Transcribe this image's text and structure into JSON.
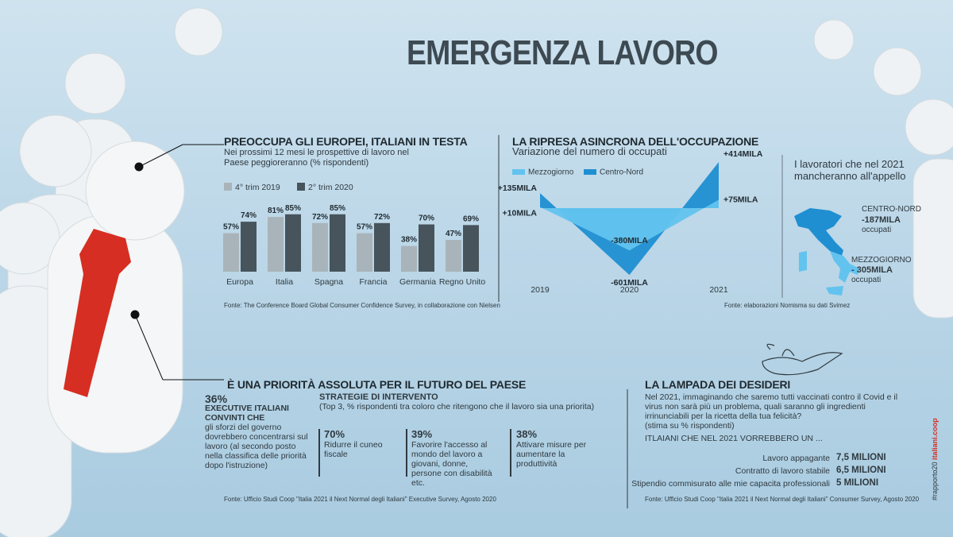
{
  "title": "EMERGENZA LAVORO",
  "chart_data": [
    {
      "type": "bar",
      "title": "PREOCCUPA GLI EUROPEI, ITALIANI IN TESTA",
      "subtitle": "Nei prossimi 12 mesi le prospettive di lavoro nel Paese peggioreranno (% rispondenti)",
      "categories": [
        "Europa",
        "Italia",
        "Spagna",
        "Francia",
        "Germania",
        "Regno Unito"
      ],
      "series": [
        {
          "name": "4° trim 2019",
          "color": "#a9b4ba",
          "values": [
            57,
            81,
            72,
            57,
            38,
            47
          ],
          "value_labels": [
            "57%",
            "81%",
            "72%",
            "57%",
            "38%",
            "47%"
          ]
        },
        {
          "name": "2° trim 2020",
          "color": "#47545c",
          "values": [
            74,
            85,
            85,
            72,
            70,
            69
          ],
          "value_labels": [
            "74%",
            "85%",
            "85%",
            "72%",
            "70%",
            "69%"
          ]
        }
      ],
      "source": "Fonte: The Conference Board Global Consumer Confidence Survey, in collaborazione con Nielsen"
    },
    {
      "type": "area",
      "title": "LA RIPRESA ASINCRONA DELL'OCCUPAZIONE",
      "subtitle": "Variazione del numero di occupati",
      "x": [
        2019,
        2020,
        2021
      ],
      "series": [
        {
          "name": "Mezzogiorno",
          "color": "#62c3ee",
          "values": [
            10,
            -380,
            75
          ],
          "value_labels": [
            "+10MILA",
            "-380MILA",
            "+75MILA"
          ]
        },
        {
          "name": "Centro-Nord",
          "color": "#1f8fd2",
          "values": [
            135,
            -601,
            414
          ],
          "value_labels": [
            "+135MILA",
            "-601MILA",
            "+414MILA"
          ]
        }
      ],
      "source": "Fonte: elaborazioni Nomisma su dati Svimez"
    }
  ],
  "map": {
    "title": "I lavoratori che nel 2021 mancheranno all'appello",
    "regions": [
      {
        "name": "CENTRO-NORD",
        "value": "-187MILA",
        "unit": "occupati"
      },
      {
        "name": "MEZZOGIORNO",
        "value": "- 305MILA",
        "unit": "occupati"
      }
    ]
  },
  "priority": {
    "title": "È UNA PRIORITÀ ASSOLUTA PER IL FUTURO DEL PAESE",
    "share": "36%",
    "who": "EXECUTIVE ITALIANI CONVINTI CHE",
    "text": "gli sforzi del governo dovrebbero concentrarsi sul lavoro (al secondo posto nella classifica delle priorità dopo l'istruzione)",
    "strategies_title": "STRATEGIE  DI INTERVENTO",
    "strategies_subtitle": "(Top 3, % rispondenti tra coloro che ritengono che il lavoro sia una priorita)",
    "strategies": [
      {
        "value": "70%",
        "text": "Ridurre il cuneo fiscale"
      },
      {
        "value": "39%",
        "text": "Favorire l'accesso al mondo del lavoro a giovani, donne, persone con disabilità etc."
      },
      {
        "value": "38%",
        "text": "Attivare misure per aumentare la produttività"
      }
    ],
    "source": "Fonte: Ufficio Studi Coop \"Italia 2021 il Next Normal degli Italiani\" Executive Survey, Agosto 2020"
  },
  "wishes": {
    "title": "LA LAMPADA DEI DESIDERI",
    "text": "Nel 2021, immaginando che saremo tutti vaccinati contro il Covid e il virus non sarà più un problema, quali saranno gli ingredienti irrinunciabili per la ricetta della tua felicità?",
    "note": "(stima su % rispondenti)",
    "lead": "ITLAIANI CHE NEL 2021 VORREBBERO UN ...",
    "items": [
      {
        "label": "Lavoro appagante",
        "value": "7,5 MILIONI"
      },
      {
        "label": "Contratto di lavoro stabile",
        "value": "6,5 MILIONI"
      },
      {
        "label": "Stipendio commisurato alle mie capacita professionali",
        "value": "5 MILIONI"
      }
    ],
    "source": "Fonte: Ufficio Studi Coop \"Italia 2021 il Next Normal degli Italiani\" Consumer Survey, Agosto 2020"
  },
  "brand": {
    "tag": "#rapporto20",
    "site": "italiani.coop"
  }
}
